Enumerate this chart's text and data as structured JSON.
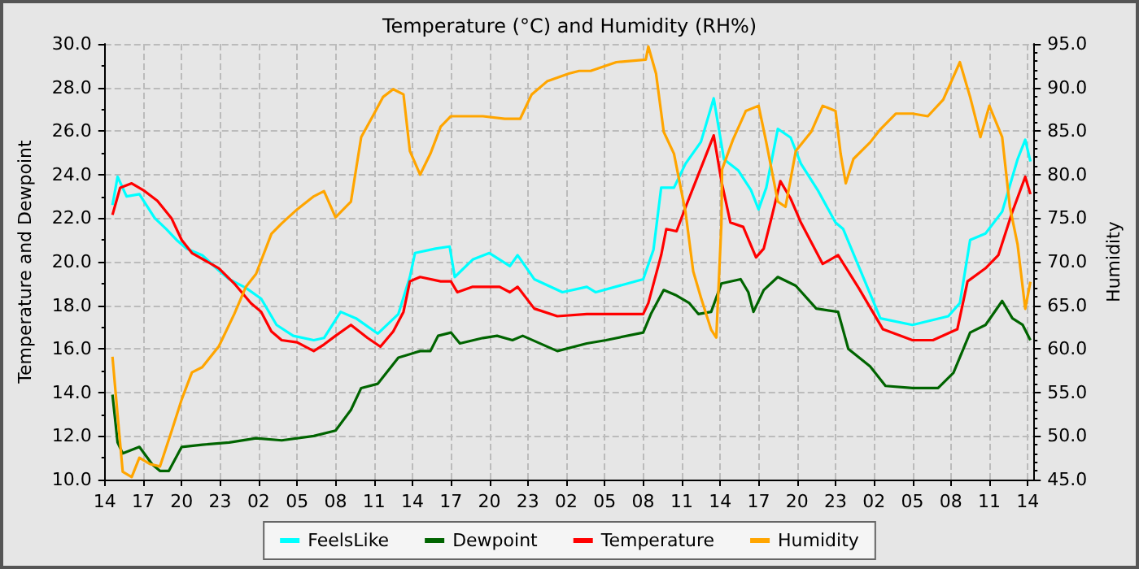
{
  "chart_data": {
    "type": "line",
    "title": "Temperature (°C) and Humidity (RH%)",
    "ylabel": "Temperature and Dewpoint",
    "y2label": "Humidity",
    "xlim": [
      "--01-01T14:00",
      "--01-04T14:30"
    ],
    "xticks": [
      {
        "value": "--01-01T14:00",
        "label": "14"
      },
      {
        "value": "--01-01T17:00",
        "label": "17"
      },
      {
        "value": "--01-01T20:00",
        "label": "20"
      },
      {
        "value": "--01-01T23:00",
        "label": "23"
      },
      {
        "value": "--01-02T02:00",
        "label": "02"
      },
      {
        "value": "--01-02T05:00",
        "label": "05"
      },
      {
        "value": "--01-02T08:00",
        "label": "08"
      },
      {
        "value": "--01-02T11:00",
        "label": "11"
      },
      {
        "value": "--01-02T14:00",
        "label": "14"
      },
      {
        "value": "--01-02T17:00",
        "label": "17"
      },
      {
        "value": "--01-02T20:00",
        "label": "20"
      },
      {
        "value": "--01-02T23:00",
        "label": "23"
      },
      {
        "value": "--01-03T02:00",
        "label": "02"
      },
      {
        "value": "--01-03T05:00",
        "label": "05"
      },
      {
        "value": "--01-03T08:00",
        "label": "08"
      },
      {
        "value": "--01-03T11:00",
        "label": "11"
      },
      {
        "value": "--01-03T14:00",
        "label": "14"
      },
      {
        "value": "--01-03T17:00",
        "label": "17"
      },
      {
        "value": "--01-03T20:00",
        "label": "20"
      },
      {
        "value": "--01-03T23:00",
        "label": "23"
      },
      {
        "value": "--01-04T02:00",
        "label": "02"
      },
      {
        "value": "--01-04T05:00",
        "label": "05"
      },
      {
        "value": "--01-04T08:00",
        "label": "08"
      },
      {
        "value": "--01-04T11:00",
        "label": "11"
      },
      {
        "value": "--01-04T14:00",
        "label": "14"
      }
    ],
    "ylim": [
      10,
      30
    ],
    "yticks": [
      {
        "value": 10,
        "label": "10.0"
      },
      {
        "value": 12,
        "label": "12.0"
      },
      {
        "value": 14,
        "label": "14.0"
      },
      {
        "value": 16,
        "label": "16.0"
      },
      {
        "value": 18,
        "label": "18.0"
      },
      {
        "value": 20,
        "label": "20.0"
      },
      {
        "value": 22,
        "label": "22.0"
      },
      {
        "value": 24,
        "label": "24.0"
      },
      {
        "value": 26,
        "label": "26.0"
      },
      {
        "value": 28,
        "label": "28.0"
      },
      {
        "value": 30,
        "label": "30.0"
      }
    ],
    "y2lim": [
      45,
      95
    ],
    "y2ticks": [
      {
        "value": 45,
        "label": "45.0"
      },
      {
        "value": 50,
        "label": "50.0"
      },
      {
        "value": 55,
        "label": "55.0"
      },
      {
        "value": 60,
        "label": "60.0"
      },
      {
        "value": 65,
        "label": "65.0"
      },
      {
        "value": 70,
        "label": "70.0"
      },
      {
        "value": 75,
        "label": "75.0"
      },
      {
        "value": 80,
        "label": "80.0"
      },
      {
        "value": 85,
        "label": "85.0"
      },
      {
        "value": 90,
        "label": "90.0"
      },
      {
        "value": 95,
        "label": "95.0"
      }
    ],
    "grid": true,
    "legend": "bottom",
    "marker": "none",
    "line_style": "solid",
    "series": [
      {
        "name": "FeelsLike",
        "color": "#00ffff",
        "x": [
          "--01-01T14:36",
          "--01-01T15:00",
          "--01-01T15:42",
          "--01-01T16:42",
          "--01-01T17:54",
          "--01-01T18:48",
          "--01-01T19:36",
          "--01-01T20:24",
          "--01-01T21:36",
          "--01-01T22:54",
          "--01-01T23:42",
          "--01-02T01:00",
          "--01-02T02:12",
          "--01-02T03:24",
          "--01-02T04:42",
          "--01-02T06:18",
          "--01-02T07:06",
          "--01-02T08:24",
          "--01-02T09:36",
          "--01-02T11:18",
          "--01-02T12:54",
          "--01-02T13:48",
          "--01-02T14:12",
          "--01-02T15:48",
          "--01-02T16:54",
          "--01-02T17:18",
          "--01-02T18:42",
          "--01-02T20:00",
          "--01-02T21:36",
          "--01-02T22:12",
          "--01-02T23:30",
          "--01-03T01:42",
          "--01-03T03:36",
          "--01-03T04:18",
          "--01-03T08:00",
          "--01-03T08:48",
          "--01-03T09:24",
          "--01-03T10:24",
          "--01-03T11:18",
          "--01-03T12:30",
          "--01-03T13:30",
          "--01-03T14:18",
          "--01-03T15:24",
          "--01-03T16:24",
          "--01-03T17:00",
          "--01-03T17:36",
          "--01-03T18:30",
          "--01-03T19:30",
          "--01-03T20:18",
          "--01-03T21:36",
          "--01-03T23:00",
          "--01-03T23:36",
          "--01-04T00:48",
          "--01-04T02:30",
          "--01-04T05:00",
          "--01-04T07:48",
          "--01-04T08:42",
          "--01-04T09:30",
          "--01-04T10:42",
          "--01-04T12:00",
          "--01-04T13:12",
          "--01-04T13:48",
          "--01-04T14:12"
        ],
        "values": [
          22.6,
          23.9,
          23.0,
          23.1,
          22.0,
          21.5,
          21.0,
          20.6,
          20.3,
          19.6,
          19.2,
          18.8,
          18.3,
          17.1,
          16.6,
          16.4,
          16.5,
          17.7,
          17.4,
          16.7,
          17.6,
          19.3,
          20.4,
          20.6,
          20.7,
          19.3,
          20.1,
          20.4,
          19.8,
          20.3,
          19.2,
          18.6,
          18.85,
          18.6,
          19.2,
          20.55,
          23.4,
          23.4,
          24.5,
          25.5,
          27.5,
          24.7,
          24.2,
          23.3,
          22.4,
          23.4,
          26.1,
          25.7,
          24.5,
          23.3,
          21.8,
          21.5,
          19.8,
          17.4,
          17.1,
          17.5,
          18.1,
          21.0,
          21.3,
          22.3,
          24.7,
          25.6,
          24.6
        ]
      },
      {
        "name": "Dewpoint",
        "color": "#006400",
        "x": [
          "--01-01T14:36",
          "--01-01T15:00",
          "--01-01T15:24",
          "--01-01T16:42",
          "--01-01T17:42",
          "--01-01T18:18",
          "--01-01T19:00",
          "--01-01T20:00",
          "--01-01T21:36",
          "--01-01T23:42",
          "--01-02T01:48",
          "--01-02T03:48",
          "--01-02T06:18",
          "--01-02T08:00",
          "--01-02T09:12",
          "--01-02T10:00",
          "--01-02T11:18",
          "--01-02T12:54",
          "--01-02T14:36",
          "--01-02T15:24",
          "--01-02T16:00",
          "--01-02T17:00",
          "--01-02T17:42",
          "--01-02T19:30",
          "--01-02T20:36",
          "--01-02T21:48",
          "--01-02T22:36",
          "--01-03T01:18",
          "--01-03T03:36",
          "--01-03T05:06",
          "--01-03T08:00",
          "--01-03T08:36",
          "--01-03T09:36",
          "--01-03T10:36",
          "--01-03T11:36",
          "--01-03T12:18",
          "--01-03T13:18",
          "--01-03T14:06",
          "--01-03T15:36",
          "--01-03T16:12",
          "--01-03T16:36",
          "--01-03T17:24",
          "--01-03T18:30",
          "--01-03T19:54",
          "--01-03T21:30",
          "--01-03T23:12",
          "--01-04T00:00",
          "--01-04T01:42",
          "--01-04T02:54",
          "--01-04T05:00",
          "--01-04T07:00",
          "--01-04T08:12",
          "--01-04T09:30",
          "--01-04T10:42",
          "--01-04T12:00",
          "--01-04T12:48",
          "--01-04T13:36",
          "--01-04T14:12"
        ],
        "values": [
          13.9,
          11.7,
          11.2,
          11.5,
          10.7,
          10.4,
          10.4,
          11.5,
          11.6,
          11.7,
          11.9,
          11.8,
          12.0,
          12.25,
          13.2,
          14.2,
          14.4,
          15.6,
          15.9,
          15.9,
          16.6,
          16.75,
          16.25,
          16.5,
          16.6,
          16.4,
          16.6,
          15.9,
          16.25,
          16.4,
          16.75,
          17.6,
          18.7,
          18.45,
          18.1,
          17.6,
          17.7,
          19.0,
          19.2,
          18.6,
          17.7,
          18.7,
          19.3,
          18.9,
          17.85,
          17.7,
          16.0,
          15.2,
          14.3,
          14.2,
          14.2,
          14.9,
          16.75,
          17.1,
          18.2,
          17.4,
          17.1,
          16.4
        ]
      },
      {
        "name": "Temperature",
        "color": "#ff0000",
        "x": [
          "--01-01T14:36",
          "--01-01T15:12",
          "--01-01T16:06",
          "--01-01T17:06",
          "--01-01T18:06",
          "--01-01T19:12",
          "--01-01T20:00",
          "--01-01T20:48",
          "--01-01T22:54",
          "--01-02T00:06",
          "--01-02T01:24",
          "--01-02T02:12",
          "--01-02T03:00",
          "--01-02T03:48",
          "--01-02T05:00",
          "--01-02T06:18",
          "--01-02T07:06",
          "--01-02T08:00",
          "--01-02T09:12",
          "--01-02T10:30",
          "--01-02T11:30",
          "--01-02T12:30",
          "--01-02T13:18",
          "--01-02T13:48",
          "--01-02T14:36",
          "--01-02T16:12",
          "--01-02T17:00",
          "--01-02T17:30",
          "--01-02T18:42",
          "--01-02T20:48",
          "--01-02T21:36",
          "--01-02T22:12",
          "--01-02T23:30",
          "--01-03T01:18",
          "--01-03T03:36",
          "--01-03T08:00",
          "--01-03T08:24",
          "--01-03T09:24",
          "--01-03T09:48",
          "--01-03T10:36",
          "--01-03T11:18",
          "--01-03T12:06",
          "--01-03T13:30",
          "--01-03T14:06",
          "--01-03T14:48",
          "--01-03T15:48",
          "--01-03T16:48",
          "--01-03T17:24",
          "--01-03T18:00",
          "--01-03T18:42",
          "--01-03T19:30",
          "--01-03T20:18",
          "--01-03T22:00",
          "--01-03T23:12",
          "--01-04T00:48",
          "--01-04T02:42",
          "--01-04T05:00",
          "--01-04T06:36",
          "--01-04T08:30",
          "--01-04T09:18",
          "--01-04T10:42",
          "--01-04T11:42",
          "--01-04T12:48",
          "--01-04T13:48",
          "--01-04T14:12"
        ],
        "values": [
          22.15,
          23.4,
          23.6,
          23.25,
          22.8,
          22.0,
          21.0,
          20.4,
          19.7,
          19.0,
          18.1,
          17.7,
          16.8,
          16.4,
          16.3,
          15.9,
          16.2,
          16.6,
          17.1,
          16.5,
          16.1,
          16.8,
          17.7,
          19.1,
          19.3,
          19.1,
          19.1,
          18.6,
          18.85,
          18.85,
          18.6,
          18.85,
          17.85,
          17.5,
          17.6,
          17.6,
          18.1,
          20.3,
          21.5,
          21.4,
          22.5,
          23.7,
          25.8,
          23.7,
          21.8,
          21.6,
          20.2,
          20.6,
          22.0,
          23.7,
          22.9,
          21.8,
          19.9,
          20.3,
          18.8,
          16.9,
          16.4,
          16.4,
          16.9,
          19.1,
          19.7,
          20.3,
          22.3,
          23.9,
          23.1
        ]
      },
      {
        "name": "Humidity",
        "color": "#ffa500",
        "axis": "y2",
        "x": [
          "--01-01T14:36",
          "--01-01T15:00",
          "--01-01T15:24",
          "--01-01T16:06",
          "--01-01T16:42",
          "--01-01T17:30",
          "--01-01T18:18",
          "--01-01T19:12",
          "--01-01T20:00",
          "--01-01T20:48",
          "--01-01T21:36",
          "--01-01T22:54",
          "--01-02T00:06",
          "--01-02T01:00",
          "--01-02T01:48",
          "--01-02T03:00",
          "--01-02T03:48",
          "--01-02T05:00",
          "--01-02T06:18",
          "--01-02T07:06",
          "--01-02T08:00",
          "--01-02T09:12",
          "--01-02T10:00",
          "--01-02T10:54",
          "--01-02T11:42",
          "--01-02T12:30",
          "--01-02T13:18",
          "--01-02T13:48",
          "--01-02T14:36",
          "--01-02T15:24",
          "--01-02T16:12",
          "--01-02T17:00",
          "--01-02T19:30",
          "--01-02T21:12",
          "--01-02T22:24",
          "--01-02T23:18",
          "--01-03T00:30",
          "--01-03T02:12",
          "--01-03T03:00",
          "--01-03T03:54",
          "--01-03T05:54",
          "--01-03T08:12",
          "--01-03T08:24",
          "--01-03T09:00",
          "--01-03T09:36",
          "--01-03T10:24",
          "--01-03T11:18",
          "--01-03T11:54",
          "--01-03T12:30",
          "--01-03T13:18",
          "--01-03T13:42",
          "--01-03T14:06",
          "--01-03T14:09",
          "--01-03T15:00",
          "--01-03T16:00",
          "--01-03T17:00",
          "--01-03T17:36",
          "--01-03T18:30",
          "--01-03T19:06",
          "--01-03T19:54",
          "--01-03T21:06",
          "--01-03T22:00",
          "--01-03T23:00",
          "--01-03T23:24",
          "--01-03T23:48",
          "--01-04T00:24",
          "--01-04T01:42",
          "--01-04T02:30",
          "--01-04T03:42",
          "--01-04T05:00",
          "--01-04T06:12",
          "--01-04T07:24",
          "--01-04T08:42",
          "--01-04T09:30",
          "--01-04T10:18",
          "--01-04T11:00",
          "--01-04T12:00",
          "--01-04T12:36",
          "--01-04T13:12",
          "--01-04T13:48",
          "--01-04T14:12"
        ],
        "values": [
          59.1,
          52.4,
          45.9,
          45.3,
          47.5,
          46.8,
          46.5,
          50.5,
          54.2,
          57.3,
          57.9,
          60.3,
          64.0,
          67.1,
          68.6,
          73.2,
          74.4,
          76.0,
          77.5,
          78.1,
          75.1,
          76.9,
          84.3,
          86.7,
          88.9,
          89.8,
          89.2,
          82.7,
          80.0,
          82.4,
          85.5,
          86.7,
          86.7,
          86.4,
          86.4,
          89.2,
          90.7,
          91.6,
          91.9,
          91.9,
          92.9,
          93.2,
          94.7,
          91.6,
          84.9,
          82.4,
          75.7,
          68.9,
          65.9,
          62.2,
          61.3,
          74.4,
          80.6,
          84.0,
          87.3,
          87.9,
          83.7,
          76.9,
          76.3,
          82.7,
          84.9,
          87.9,
          87.3,
          82.4,
          79.0,
          81.8,
          83.7,
          85.2,
          87.0,
          87.0,
          86.7,
          88.6,
          92.9,
          88.9,
          84.3,
          87.9,
          84.3,
          76.3,
          72.0,
          64.6,
          67.7
        ]
      }
    ]
  }
}
